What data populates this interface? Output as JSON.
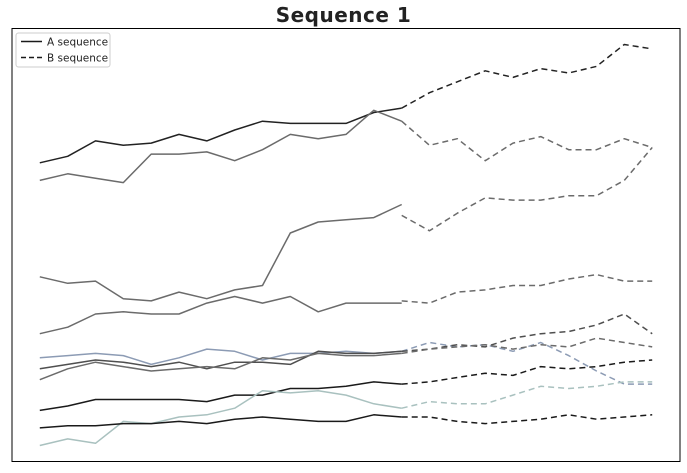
{
  "chart_data": {
    "type": "line",
    "title": "Sequence 1",
    "xlabel": "",
    "ylabel": "",
    "grid": false,
    "axis_ticks": false,
    "xlim": [
      -1,
      23
    ],
    "ylim": [
      -9.5,
      9.5
    ],
    "legend": {
      "position": "top-left",
      "entries": [
        {
          "label": "A sequence",
          "style": "solid",
          "color": "#1a1a1a"
        },
        {
          "label": "B sequence",
          "style": "dashed",
          "color": "#1a1a1a"
        }
      ]
    },
    "a_x": [
      0,
      1,
      2,
      3,
      4,
      5,
      6,
      7,
      8,
      9,
      10,
      11,
      12,
      13
    ],
    "b_x": [
      13,
      14,
      15,
      16,
      17,
      18,
      19,
      20,
      21,
      22
    ],
    "series": [
      {
        "color": "#222222",
        "a_values": [
          6.8,
          7.1,
          7.8,
          7.6,
          7.7,
          8.1,
          7.8,
          8.3,
          8.7,
          8.6,
          8.6,
          8.6,
          9.1,
          9.3
        ],
        "b_values": [
          9.3,
          10.0,
          10.5,
          11.0,
          10.7,
          11.1,
          10.9,
          11.2,
          12.2,
          12.0
        ]
      },
      {
        "color": "#6b6b6b",
        "a_values": [
          6.0,
          6.3,
          6.1,
          5.9,
          7.2,
          7.2,
          7.3,
          6.9,
          7.4,
          8.1,
          7.9,
          8.1,
          9.2,
          8.7
        ],
        "b_values": [
          8.7,
          7.6,
          7.9,
          6.9,
          7.7,
          8.0,
          7.4,
          7.4,
          7.9,
          7.5
        ]
      },
      {
        "color": "#6b6b6b",
        "a_values": [
          1.6,
          1.3,
          1.4,
          0.6,
          0.5,
          0.9,
          0.6,
          1.0,
          1.2,
          3.6,
          4.1,
          4.2,
          4.3,
          4.9
        ],
        "b_values": [
          4.4,
          3.7,
          4.5,
          5.2,
          5.1,
          5.1,
          5.3,
          5.3,
          6.0,
          7.5
        ]
      },
      {
        "color": "#6b6b6b",
        "a_values": [
          -1.0,
          -0.7,
          -0.1,
          0.0,
          -0.1,
          -0.1,
          0.4,
          0.7,
          0.4,
          0.7,
          0.0,
          0.4,
          0.4,
          0.4
        ],
        "b_values": [
          0.5,
          0.4,
          0.9,
          1.0,
          1.2,
          1.2,
          1.5,
          1.7,
          1.4,
          1.4
        ]
      },
      {
        "color": "#8c9bb4",
        "a_values": [
          -2.1,
          -2.0,
          -1.9,
          -2.0,
          -2.4,
          -2.1,
          -1.7,
          -1.8,
          -2.2,
          -1.9,
          -1.9,
          -1.8,
          -1.9,
          -1.8
        ],
        "b_values": [
          -1.8,
          -1.4,
          -1.6,
          -1.5,
          -1.8,
          -1.4,
          -2.0,
          -2.7,
          -3.3,
          -3.3
        ]
      },
      {
        "color": "#4f4f4f",
        "a_values": [
          -2.6,
          -2.4,
          -2.2,
          -2.3,
          -2.5,
          -2.3,
          -2.6,
          -2.3,
          -2.3,
          -2.4,
          -1.8,
          -1.9,
          -1.9,
          -1.8
        ],
        "b_values": [
          -1.8,
          -1.7,
          -1.5,
          -1.6,
          -1.2,
          -1.0,
          -0.9,
          -0.6,
          -0.1,
          -1.0
        ]
      },
      {
        "color": "#6b6b6b",
        "a_values": [
          -3.1,
          -2.6,
          -2.3,
          -2.5,
          -2.7,
          -2.6,
          -2.5,
          -2.6,
          -2.1,
          -2.2,
          -1.9,
          -2.0,
          -2.0,
          -1.9
        ],
        "b_values": [
          -1.9,
          -1.7,
          -1.6,
          -1.5,
          -1.7,
          -1.5,
          -1.6,
          -1.2,
          -1.4,
          -1.6
        ]
      },
      {
        "color": "#1a1a1a",
        "a_values": [
          -4.5,
          -4.3,
          -4.0,
          -4.0,
          -4.0,
          -4.0,
          -4.1,
          -3.8,
          -3.8,
          -3.5,
          -3.5,
          -3.4,
          -3.2,
          -3.3
        ],
        "b_values": [
          -3.3,
          -3.2,
          -3.0,
          -2.8,
          -2.9,
          -2.5,
          -2.6,
          -2.5,
          -2.3,
          -2.2
        ]
      },
      {
        "color": "#a9c1bf",
        "a_values": [
          -6.1,
          -5.8,
          -6.0,
          -5.0,
          -5.1,
          -4.8,
          -4.7,
          -4.4,
          -3.6,
          -3.7,
          -3.6,
          -3.8,
          -4.2,
          -4.4
        ],
        "b_values": [
          -4.4,
          -4.1,
          -4.2,
          -4.2,
          -3.8,
          -3.4,
          -3.5,
          -3.4,
          -3.2,
          -3.2
        ]
      },
      {
        "color": "#1a1a1a",
        "a_values": [
          -5.3,
          -5.2,
          -5.2,
          -5.1,
          -5.1,
          -5.0,
          -5.1,
          -4.9,
          -4.8,
          -4.9,
          -5.0,
          -5.0,
          -4.7,
          -4.8
        ],
        "b_values": [
          -4.8,
          -4.8,
          -5.0,
          -5.1,
          -5.0,
          -4.9,
          -4.7,
          -4.9,
          -4.8,
          -4.7
        ]
      }
    ]
  }
}
